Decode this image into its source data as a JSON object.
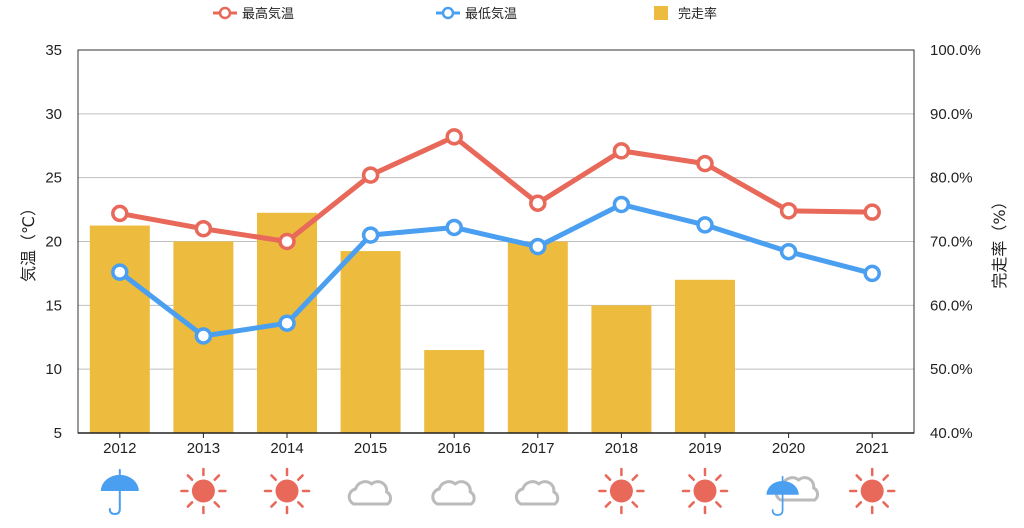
{
  "chart_data": {
    "type": "bar",
    "title": "",
    "categories": [
      "2012",
      "2013",
      "2014",
      "2015",
      "2016",
      "2017",
      "2018",
      "2019",
      "2020",
      "2021"
    ],
    "series": [
      {
        "name": "最高気温",
        "type": "line",
        "axis": "left",
        "color": "#E8685A",
        "values": [
          22.2,
          21.0,
          20.0,
          25.2,
          28.2,
          23.0,
          27.1,
          26.1,
          22.4,
          22.3
        ]
      },
      {
        "name": "最低気温",
        "type": "line",
        "axis": "left",
        "color": "#4A9FF0",
        "values": [
          17.6,
          12.6,
          13.6,
          20.5,
          21.1,
          19.6,
          22.9,
          21.3,
          19.2,
          17.5
        ]
      },
      {
        "name": "完走率",
        "type": "bar",
        "axis": "right",
        "color": "#EDBC3F",
        "values": [
          72.5,
          70.0,
          74.5,
          68.5,
          53.0,
          70.0,
          60.0,
          64.0,
          null,
          null
        ]
      }
    ],
    "ylabel_left": "気温（℃）",
    "ylabel_right": "完走率（%）",
    "ylim_left": [
      5,
      35
    ],
    "yticks_left": [
      "35",
      "30",
      "25",
      "20",
      "15",
      "10",
      "5"
    ],
    "ylim_right": [
      40,
      100
    ],
    "yticks_right": [
      "100.0%",
      "90.0%",
      "80.0%",
      "70.0%",
      "60.0%",
      "50.0%",
      "40.0%"
    ],
    "grid": true,
    "legend_position": "top",
    "weather_icons": [
      "umbrella-icon",
      "sun-icon",
      "sun-icon",
      "cloud-icon",
      "cloud-icon",
      "cloud-icon",
      "sun-icon",
      "sun-icon",
      "umbrella-cloud-icon",
      "sun-icon"
    ]
  },
  "colors": {
    "high_temp": "#E8685A",
    "low_temp": "#4A9FF0",
    "finish_rate": "#EDBC3F",
    "grid": "#BFBFBF",
    "axis": "#333333",
    "cloud": "#BBBBBB"
  }
}
